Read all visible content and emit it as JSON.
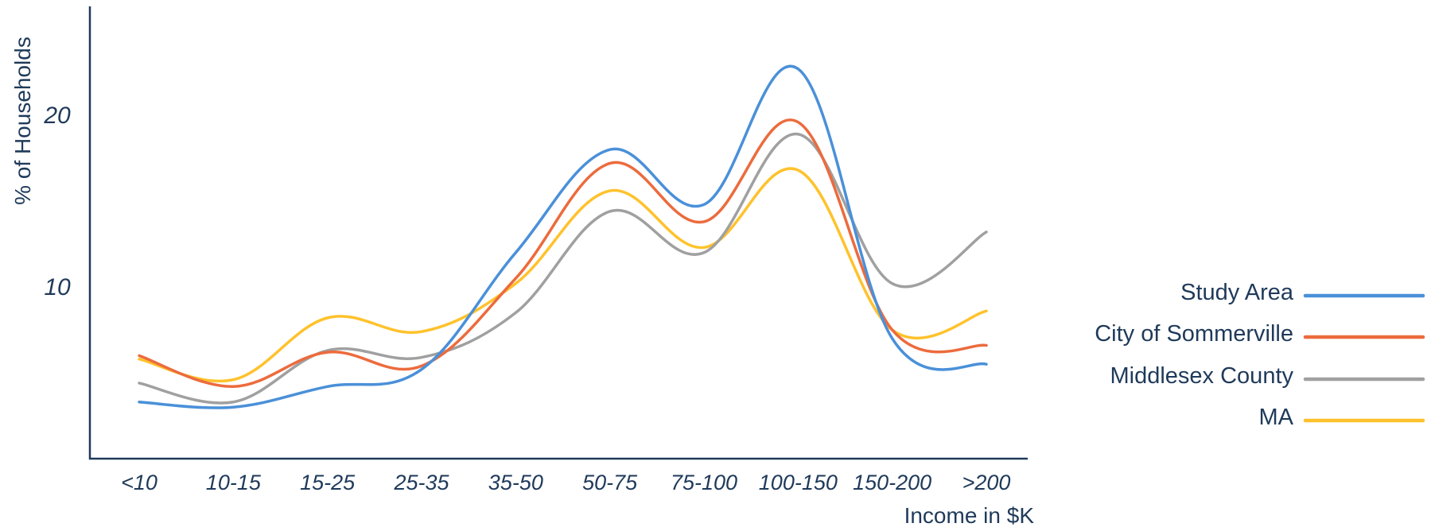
{
  "chart_data": {
    "type": "line",
    "title": "",
    "xlabel": "Income in $K",
    "ylabel": "% of Households",
    "ylim": [
      0,
      25
    ],
    "yticks": [
      10,
      20
    ],
    "grid": false,
    "legend_position": "right",
    "categories": [
      "<10",
      "10-15",
      "15-25",
      "25-35",
      "35-50",
      "50-75",
      "75-100",
      "100-150",
      "150-200",
      ">200"
    ],
    "series": [
      {
        "name": "Study Area",
        "color": "#4a90d9",
        "values": [
          3.3,
          3.0,
          4.2,
          5.2,
          12.0,
          18.0,
          14.8,
          22.7,
          7.0,
          5.5
        ]
      },
      {
        "name": "City of Sommerville",
        "color": "#ec6b3d",
        "values": [
          6.0,
          4.2,
          6.2,
          5.4,
          10.5,
          17.2,
          13.8,
          19.6,
          7.5,
          6.6
        ]
      },
      {
        "name": "Middlesex County",
        "color": "#a0a0a0",
        "values": [
          4.4,
          3.3,
          6.3,
          5.9,
          8.5,
          14.4,
          12.0,
          18.9,
          10.2,
          13.2
        ]
      },
      {
        "name": "MA",
        "color": "#ffc22c",
        "values": [
          5.8,
          4.6,
          8.2,
          7.4,
          10.2,
          15.6,
          12.3,
          16.8,
          7.5,
          8.6
        ]
      }
    ]
  }
}
